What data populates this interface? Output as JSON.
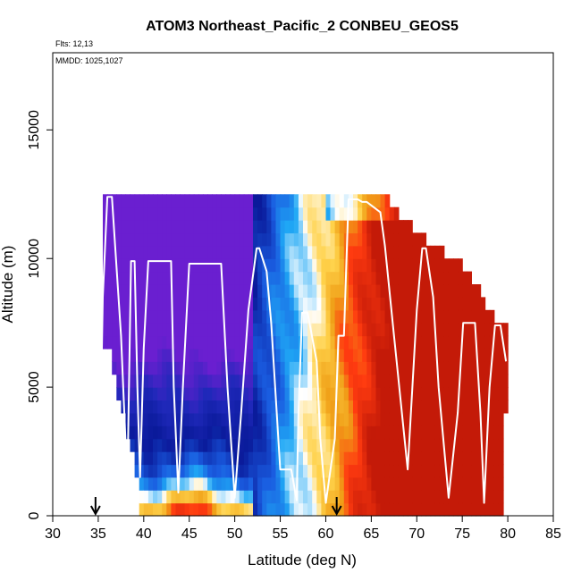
{
  "chart_data": {
    "type": "heatmap",
    "title": "ATOM3 Northeast_Pacific_2 CONBEU_GEOS5",
    "annotations": {
      "flights": "Flts: 12,13",
      "dates": "MMDD: 1025,1027"
    },
    "xlabel": "Latitude (deg N)",
    "ylabel": "Altitude (m)",
    "xlim": [
      30,
      85
    ],
    "ylim": [
      0,
      18000
    ],
    "x_ticks": [
      "30",
      "35",
      "40",
      "45",
      "50",
      "55",
      "60",
      "65",
      "70",
      "75",
      "80",
      "85"
    ],
    "y_ticks": [
      "0",
      "5000",
      "10000",
      "15000"
    ],
    "grid": false,
    "colormap": [
      "#6a1fd0",
      "#1e3bc8",
      "#0a1a9a",
      "#1a5ce0",
      "#1fa8f5",
      "#ffffff",
      "#ffd24a",
      "#f0a018",
      "#ff3b10",
      "#c41a08"
    ],
    "flight_track": {
      "color": "#ffffff",
      "latitude": [
        35.4,
        35.5,
        36.0,
        36.5,
        37.5,
        38.2,
        38.6,
        39.0,
        39.3,
        39.6,
        40.0,
        40.5,
        40.8,
        43.0,
        43.3,
        43.8,
        44.3,
        45.0,
        46.0,
        46.5,
        47.0,
        48.5,
        49.2,
        50.0,
        50.7,
        51.5,
        52.4,
        52.7,
        53.5,
        54.0,
        55.0,
        55.5,
        56.2,
        56.8,
        57.0,
        57.4,
        58.0,
        59.0,
        59.4,
        60.0,
        61.0,
        61.4,
        62.0,
        62.5,
        63.5,
        64.0,
        64.5,
        66.0,
        66.5,
        67.5,
        69.0,
        70.0,
        70.6,
        71.0,
        71.8,
        72.4,
        73.5,
        74.5,
        75.1,
        76.0,
        76.4,
        77.0,
        77.4,
        78.0,
        78.6,
        79.2,
        79.8
      ],
      "altitude": [
        6500,
        8500,
        12400,
        12400,
        7000,
        1200,
        9900,
        9900,
        5000,
        1500,
        6500,
        9900,
        9900,
        9900,
        5000,
        900,
        5000,
        9800,
        9800,
        9800,
        9800,
        9800,
        5000,
        700,
        4000,
        8000,
        10400,
        10400,
        9500,
        7500,
        1800,
        1800,
        1800,
        600,
        4000,
        7900,
        7900,
        6000,
        3000,
        500,
        3000,
        7000,
        7000,
        12300,
        12300,
        12200,
        12200,
        11800,
        10500,
        7000,
        1800,
        8000,
        10400,
        10400,
        8500,
        5000,
        700,
        4000,
        7500,
        7500,
        7500,
        4000,
        500,
        5000,
        7400,
        7400,
        6000
      ]
    },
    "markers": [
      {
        "label": "arrow",
        "latitude": 34.7
      },
      {
        "label": "arrow",
        "latitude": 61.2
      }
    ]
  }
}
